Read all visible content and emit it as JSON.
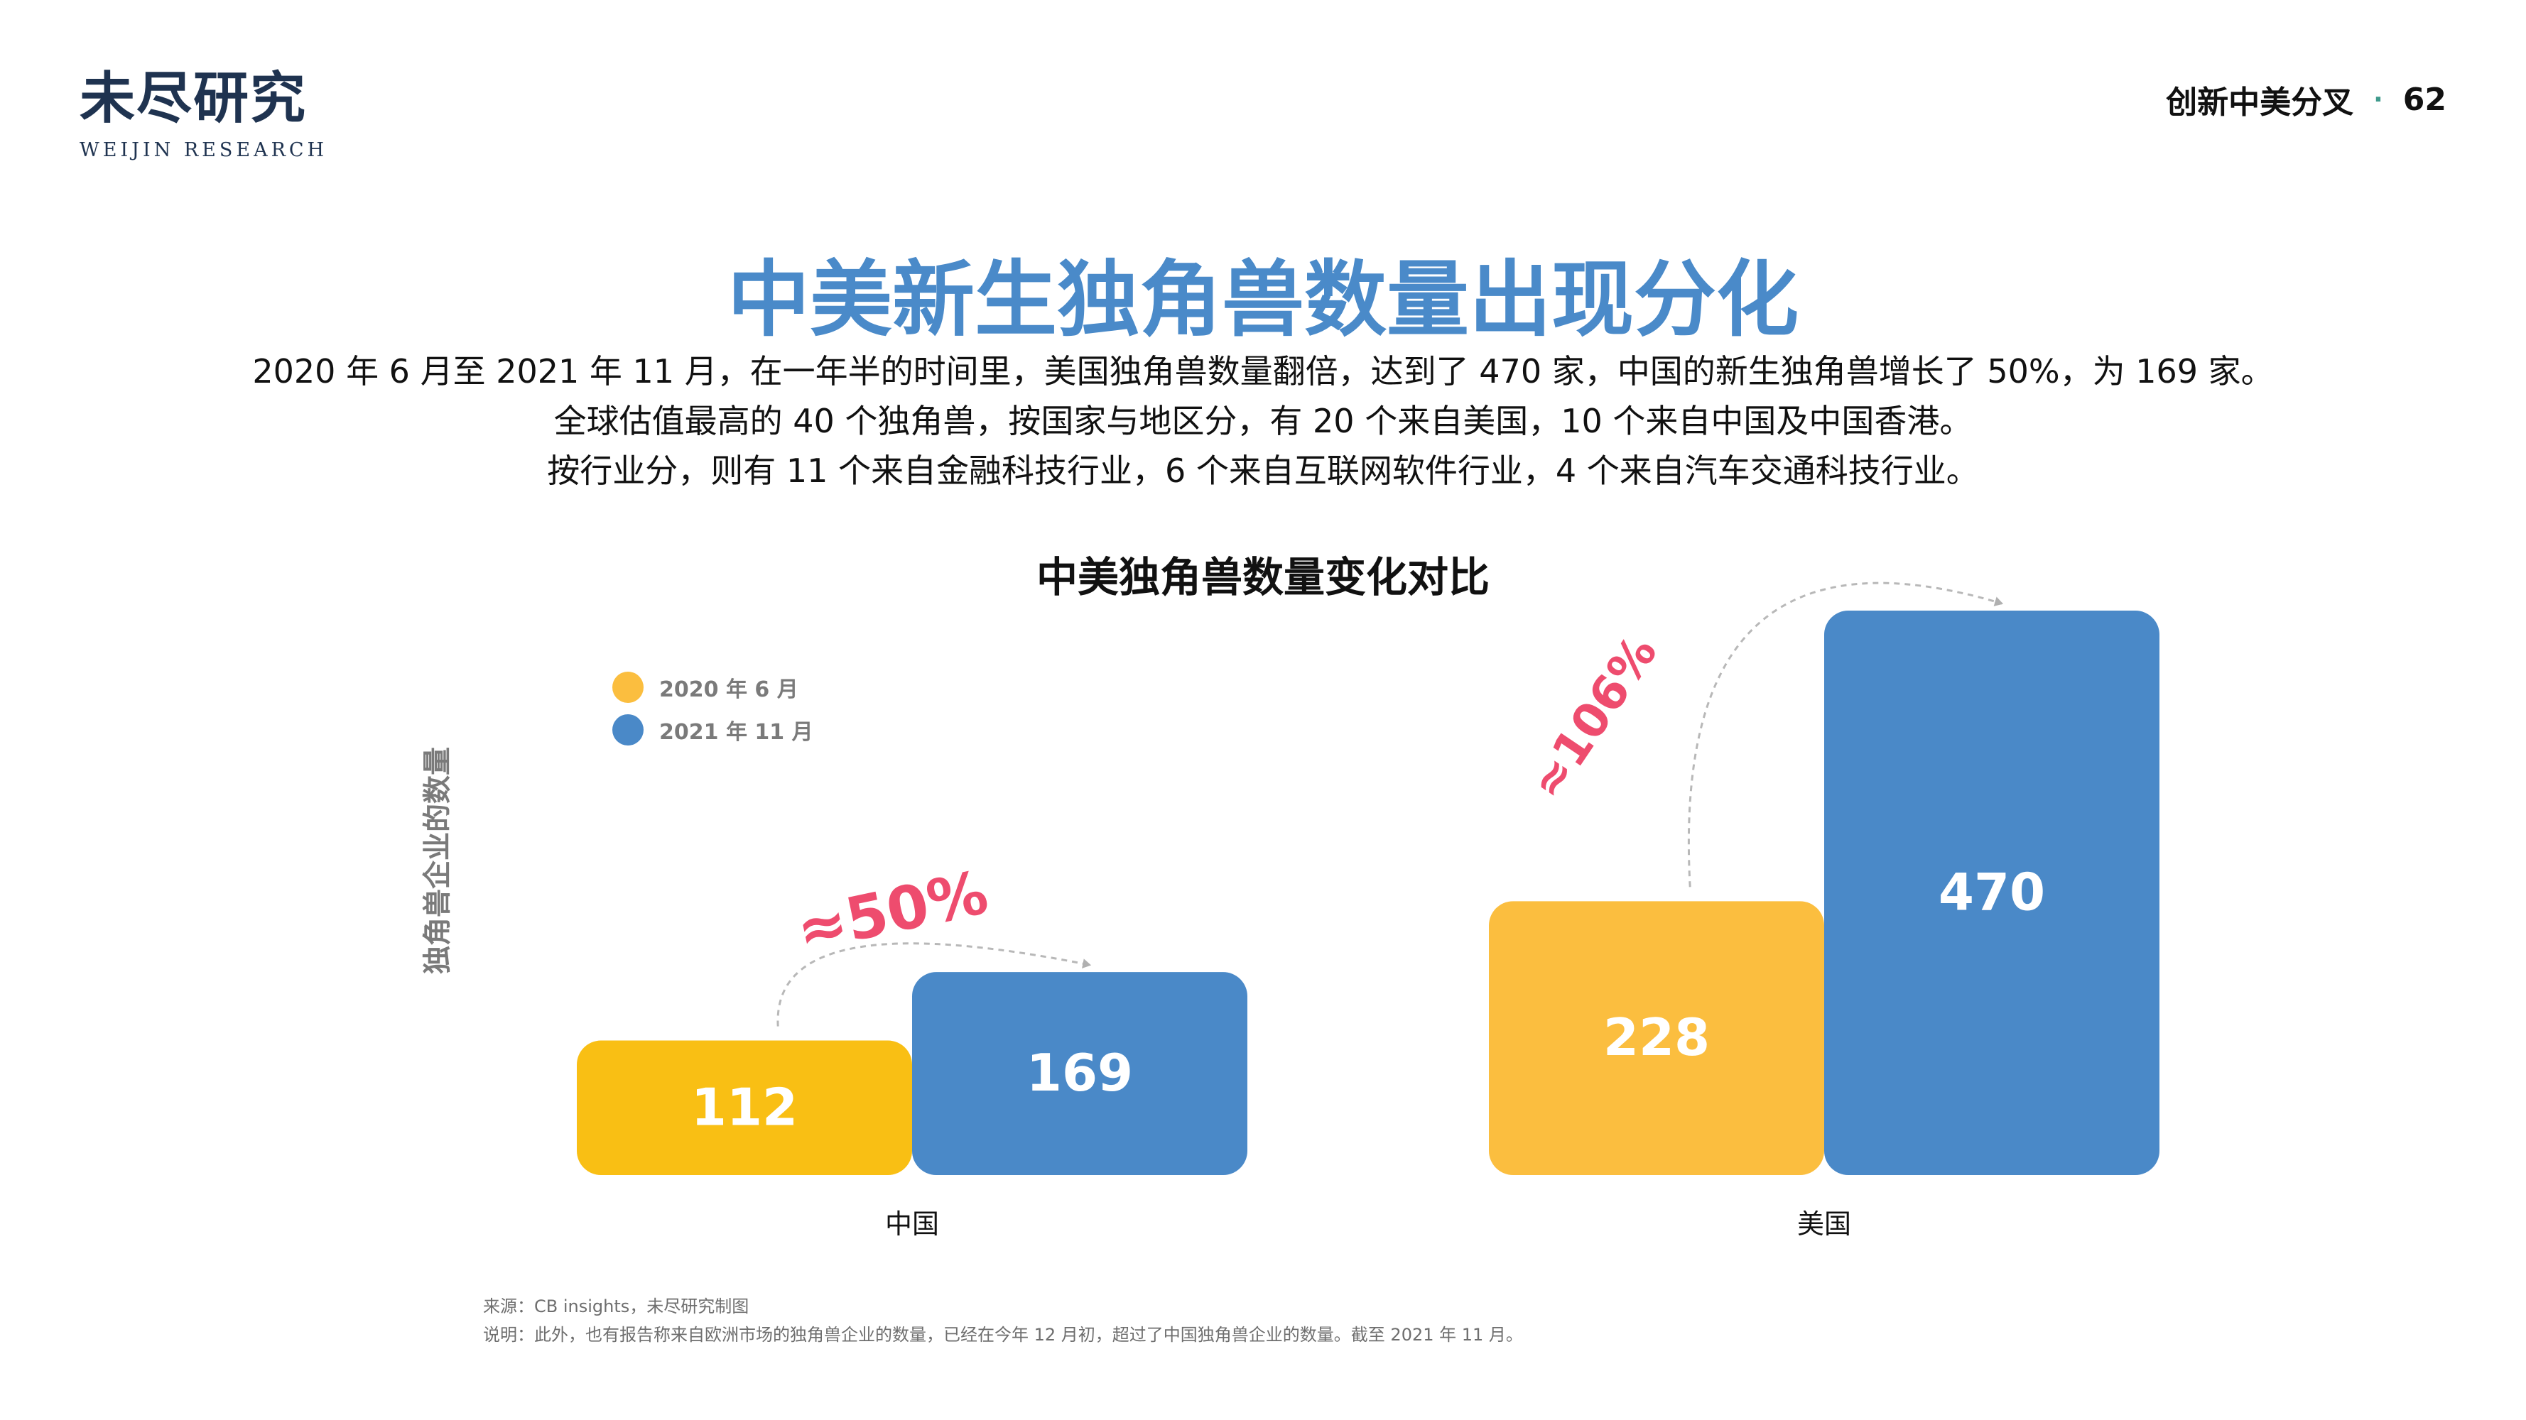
{
  "header": {
    "logo_cn": "未尽研究",
    "logo_en": "WEIJIN RESEARCH",
    "section": "创新中美分叉",
    "separator": "·",
    "page_number": "62"
  },
  "title": "中美新生独角兽数量出现分化",
  "intro": [
    "2020 年 6 月至 2021 年 11 月，在一年半的时间里，美国独角兽数量翻倍，达到了 470 家，中国的新生独角兽增长了 50%，为 169 家。",
    "全球估值最高的 40 个独角兽，按国家与地区分，有 20 个来自美国，10 个来自中国及中国香港。",
    "按行业分，则有 11 个来自金融科技行业，6 个来自互联网软件行业，4 个来自汽车交通科技行业。"
  ],
  "source": {
    "line1": "来源：CB insights，未尽研究制图",
    "line2": "说明：此外，也有报告称来自欧洲市场的独角兽企业的数量，已经在今年 12 月初，超过了中国独角兽企业的数量。截至 2021 年 11 月。"
  },
  "colors": {
    "title": "#4a8ac9",
    "series_2020": "#fbbe3f",
    "series_2020_china": "#f9bf14",
    "series_2021": "#4a89c8",
    "growth": "#ee4c6e"
  },
  "chart_data": {
    "type": "bar",
    "title": "中美独角兽数量变化对比",
    "ylabel": "独角兽企业的数量",
    "xlabel": "",
    "categories": [
      "中国",
      "美国"
    ],
    "series": [
      {
        "name": "2020 年 6 月",
        "values": [
          112,
          228
        ]
      },
      {
        "name": "2021 年 11 月",
        "values": [
          169,
          470
        ]
      }
    ],
    "growth_labels": [
      "≈50%",
      "≈106%"
    ],
    "legend_position": "top-left",
    "grid": false,
    "ylim": [
      0,
      470
    ]
  }
}
